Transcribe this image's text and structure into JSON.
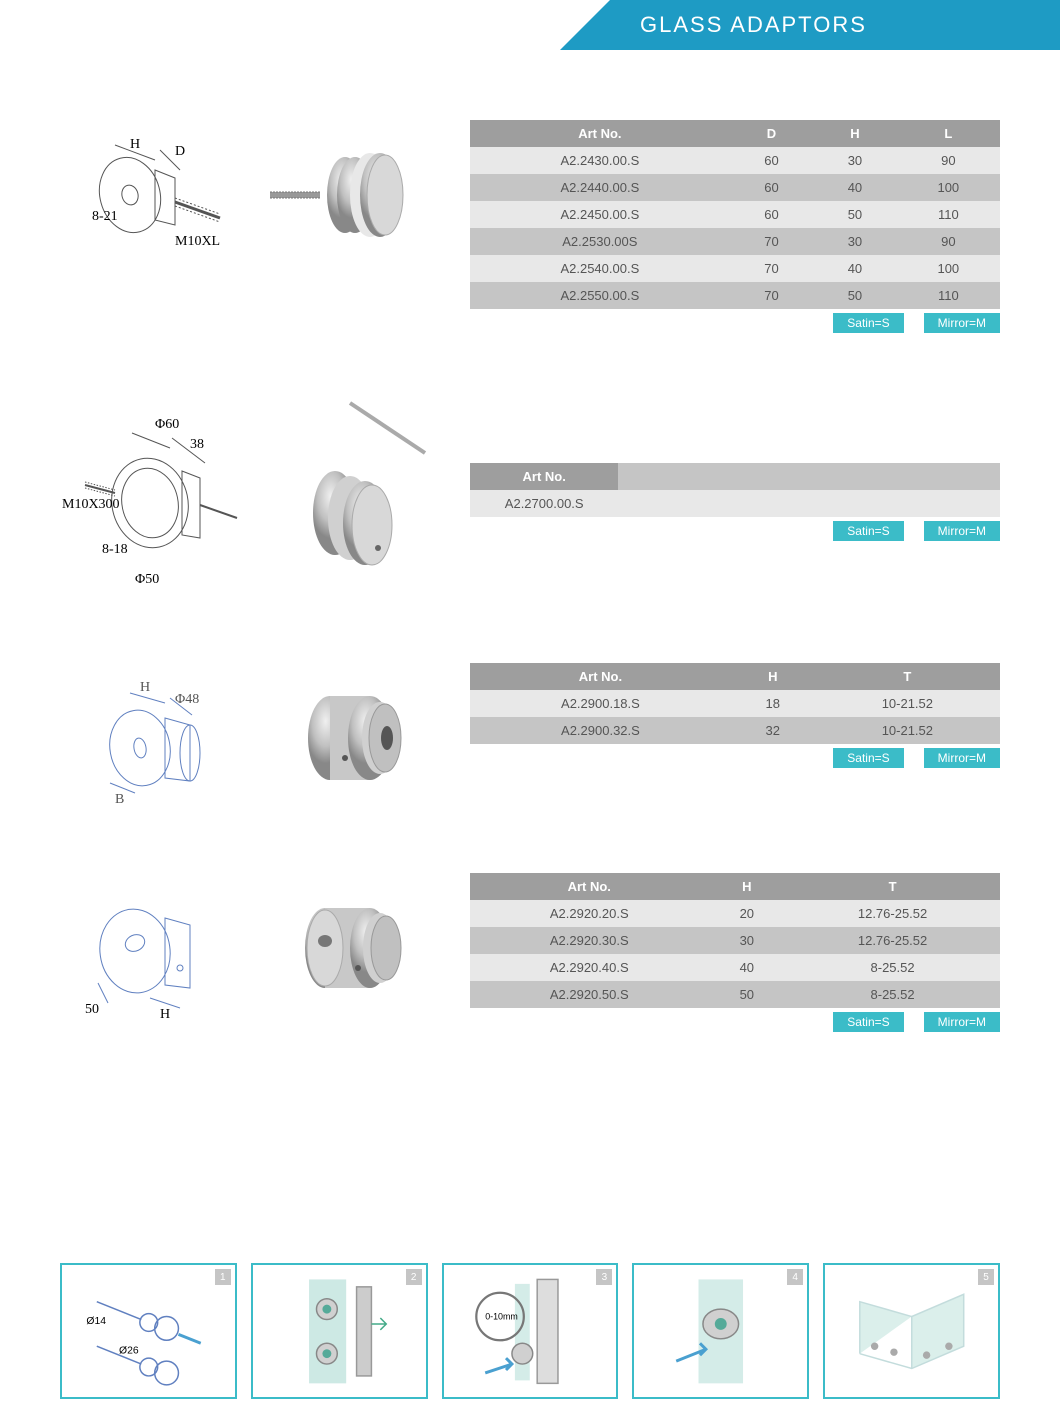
{
  "header": {
    "title": "GLASS ADAPTORS"
  },
  "finish": {
    "satin": "Satin=S",
    "mirror": "Mirror=M"
  },
  "products": [
    {
      "diagram_labels": {
        "h": "H",
        "d": "D",
        "range": "8-21",
        "thread": "M10XL"
      },
      "table": {
        "columns": [
          "Art No.",
          "D",
          "H",
          "L"
        ],
        "rows": [
          [
            "A2.2430.00.S",
            "60",
            "30",
            "90"
          ],
          [
            "A2.2440.00.S",
            "60",
            "40",
            "100"
          ],
          [
            "A2.2450.00.S",
            "60",
            "50",
            "110"
          ],
          [
            "A2.2530.00S",
            "70",
            "30",
            "90"
          ],
          [
            "A2.2540.00.S",
            "70",
            "40",
            "100"
          ],
          [
            "A2.2550.00.S",
            "70",
            "50",
            "110"
          ]
        ]
      }
    },
    {
      "diagram_labels": {
        "d1": "Φ60",
        "l1": "38",
        "thread": "M10X300",
        "range": "8-18",
        "d2": "Φ50"
      },
      "table": {
        "columns": [
          "Art No."
        ],
        "rows": [
          [
            "A2.2700.00.S"
          ]
        ]
      }
    },
    {
      "diagram_labels": {
        "h": "H",
        "d": "Φ48",
        "b": "B"
      },
      "table": {
        "columns": [
          "Art No.",
          "H",
          "T"
        ],
        "rows": [
          [
            "A2.2900.18.S",
            "18",
            "10-21.52"
          ],
          [
            "A2.2900.32.S",
            "32",
            "10-21.52"
          ]
        ]
      }
    },
    {
      "diagram_labels": {
        "h": "H",
        "d": "50"
      },
      "table": {
        "columns": [
          "Art No.",
          "H",
          "T"
        ],
        "rows": [
          [
            "A2.2920.20.S",
            "20",
            "12.76-25.52"
          ],
          [
            "A2.2920.30.S",
            "30",
            "12.76-25.52"
          ],
          [
            "A2.2920.40.S",
            "40",
            "8-25.52"
          ],
          [
            "A2.2920.50.S",
            "50",
            "8-25.52"
          ]
        ]
      }
    }
  ],
  "steps": [
    {
      "num": "1",
      "labels": {
        "d1": "Ø14",
        "d2": "Ø26"
      }
    },
    {
      "num": "2"
    },
    {
      "num": "3",
      "labels": {
        "gap": "0-10mm"
      }
    },
    {
      "num": "4"
    },
    {
      "num": "5"
    }
  ],
  "colors": {
    "brand": "#1e9bc4",
    "teal": "#3bbcc8",
    "th_bg": "#9e9e9e",
    "row_light": "#e8e8e8",
    "row_dark": "#c5c5c5",
    "metal_light": "#e0e0e0",
    "metal_mid": "#b8b8b8",
    "metal_dark": "#888",
    "line": "#555",
    "glass": "#b8e0d8"
  }
}
